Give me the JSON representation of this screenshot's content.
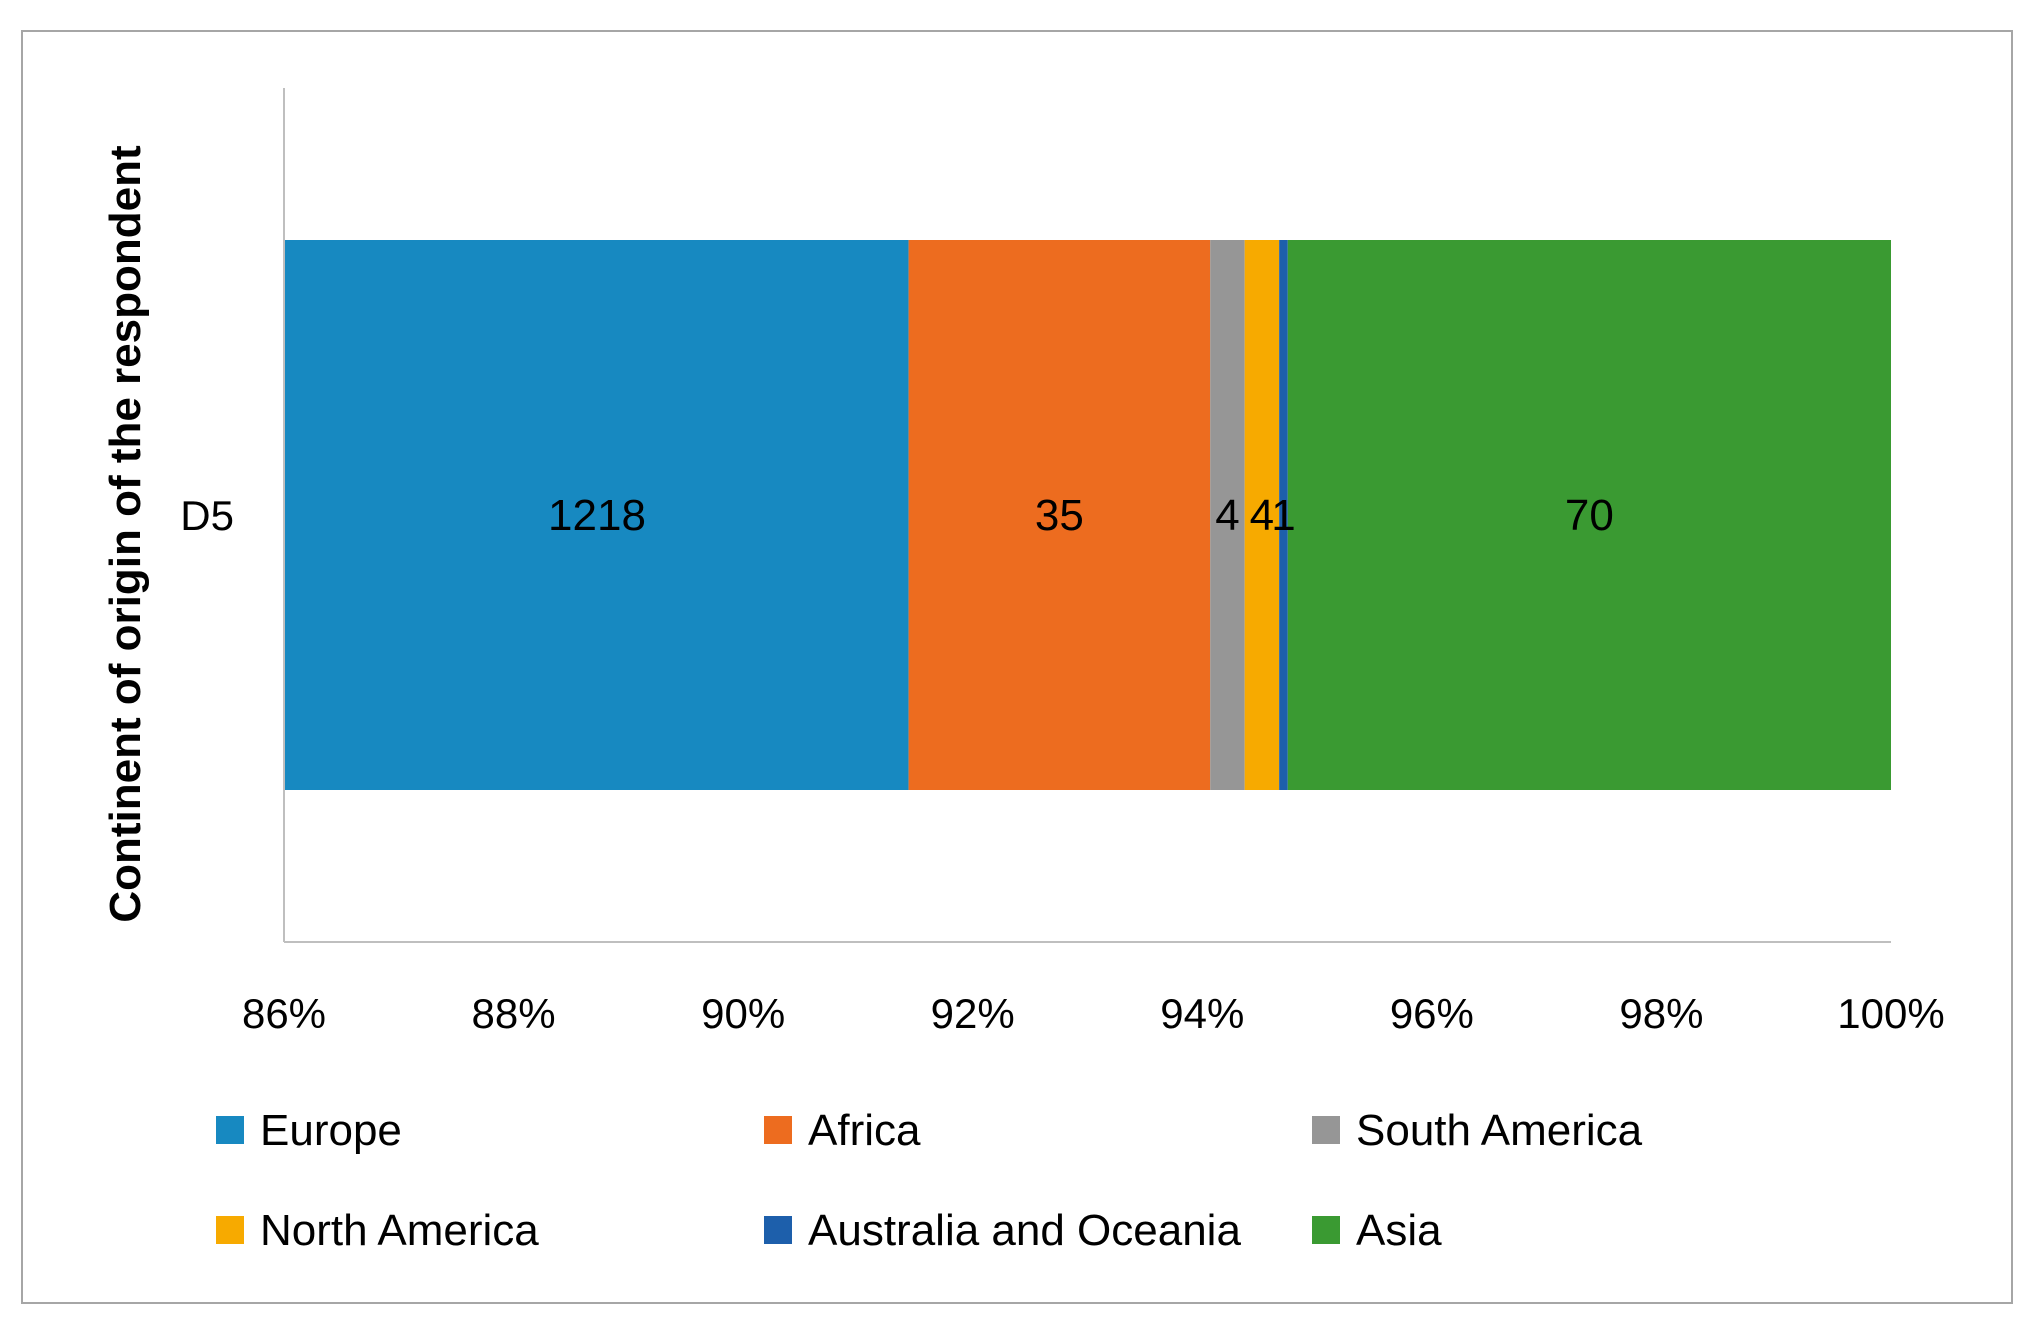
{
  "chart_data": {
    "type": "bar",
    "orientation": "horizontal",
    "stacking": "stacked-percent",
    "title": "",
    "xlabel": "",
    "ylabel": "Continent of origin of the respondent",
    "categories": [
      "D5"
    ],
    "xlim": [
      0.86,
      1.0
    ],
    "x_ticks": [
      "86%",
      "88%",
      "90%",
      "92%",
      "94%",
      "96%",
      "98%",
      "100%"
    ],
    "series": [
      {
        "name": "Europe",
        "values": [
          1218
        ],
        "label": "1218",
        "color": "#1789C1"
      },
      {
        "name": "Africa",
        "values": [
          35
        ],
        "label": "35",
        "color": "#ED6C1F"
      },
      {
        "name": "South America",
        "values": [
          4
        ],
        "label": "4",
        "color": "#969696"
      },
      {
        "name": "North America",
        "values": [
          4
        ],
        "label": "4",
        "color": "#F7AA00"
      },
      {
        "name": "Australia and Oceania",
        "values": [
          1
        ],
        "label": "1",
        "color": "#1D5FAB"
      },
      {
        "name": "Asia",
        "values": [
          70
        ],
        "label": "70",
        "color": "#3A9A32"
      }
    ],
    "legend_position": "bottom",
    "grid": false
  }
}
